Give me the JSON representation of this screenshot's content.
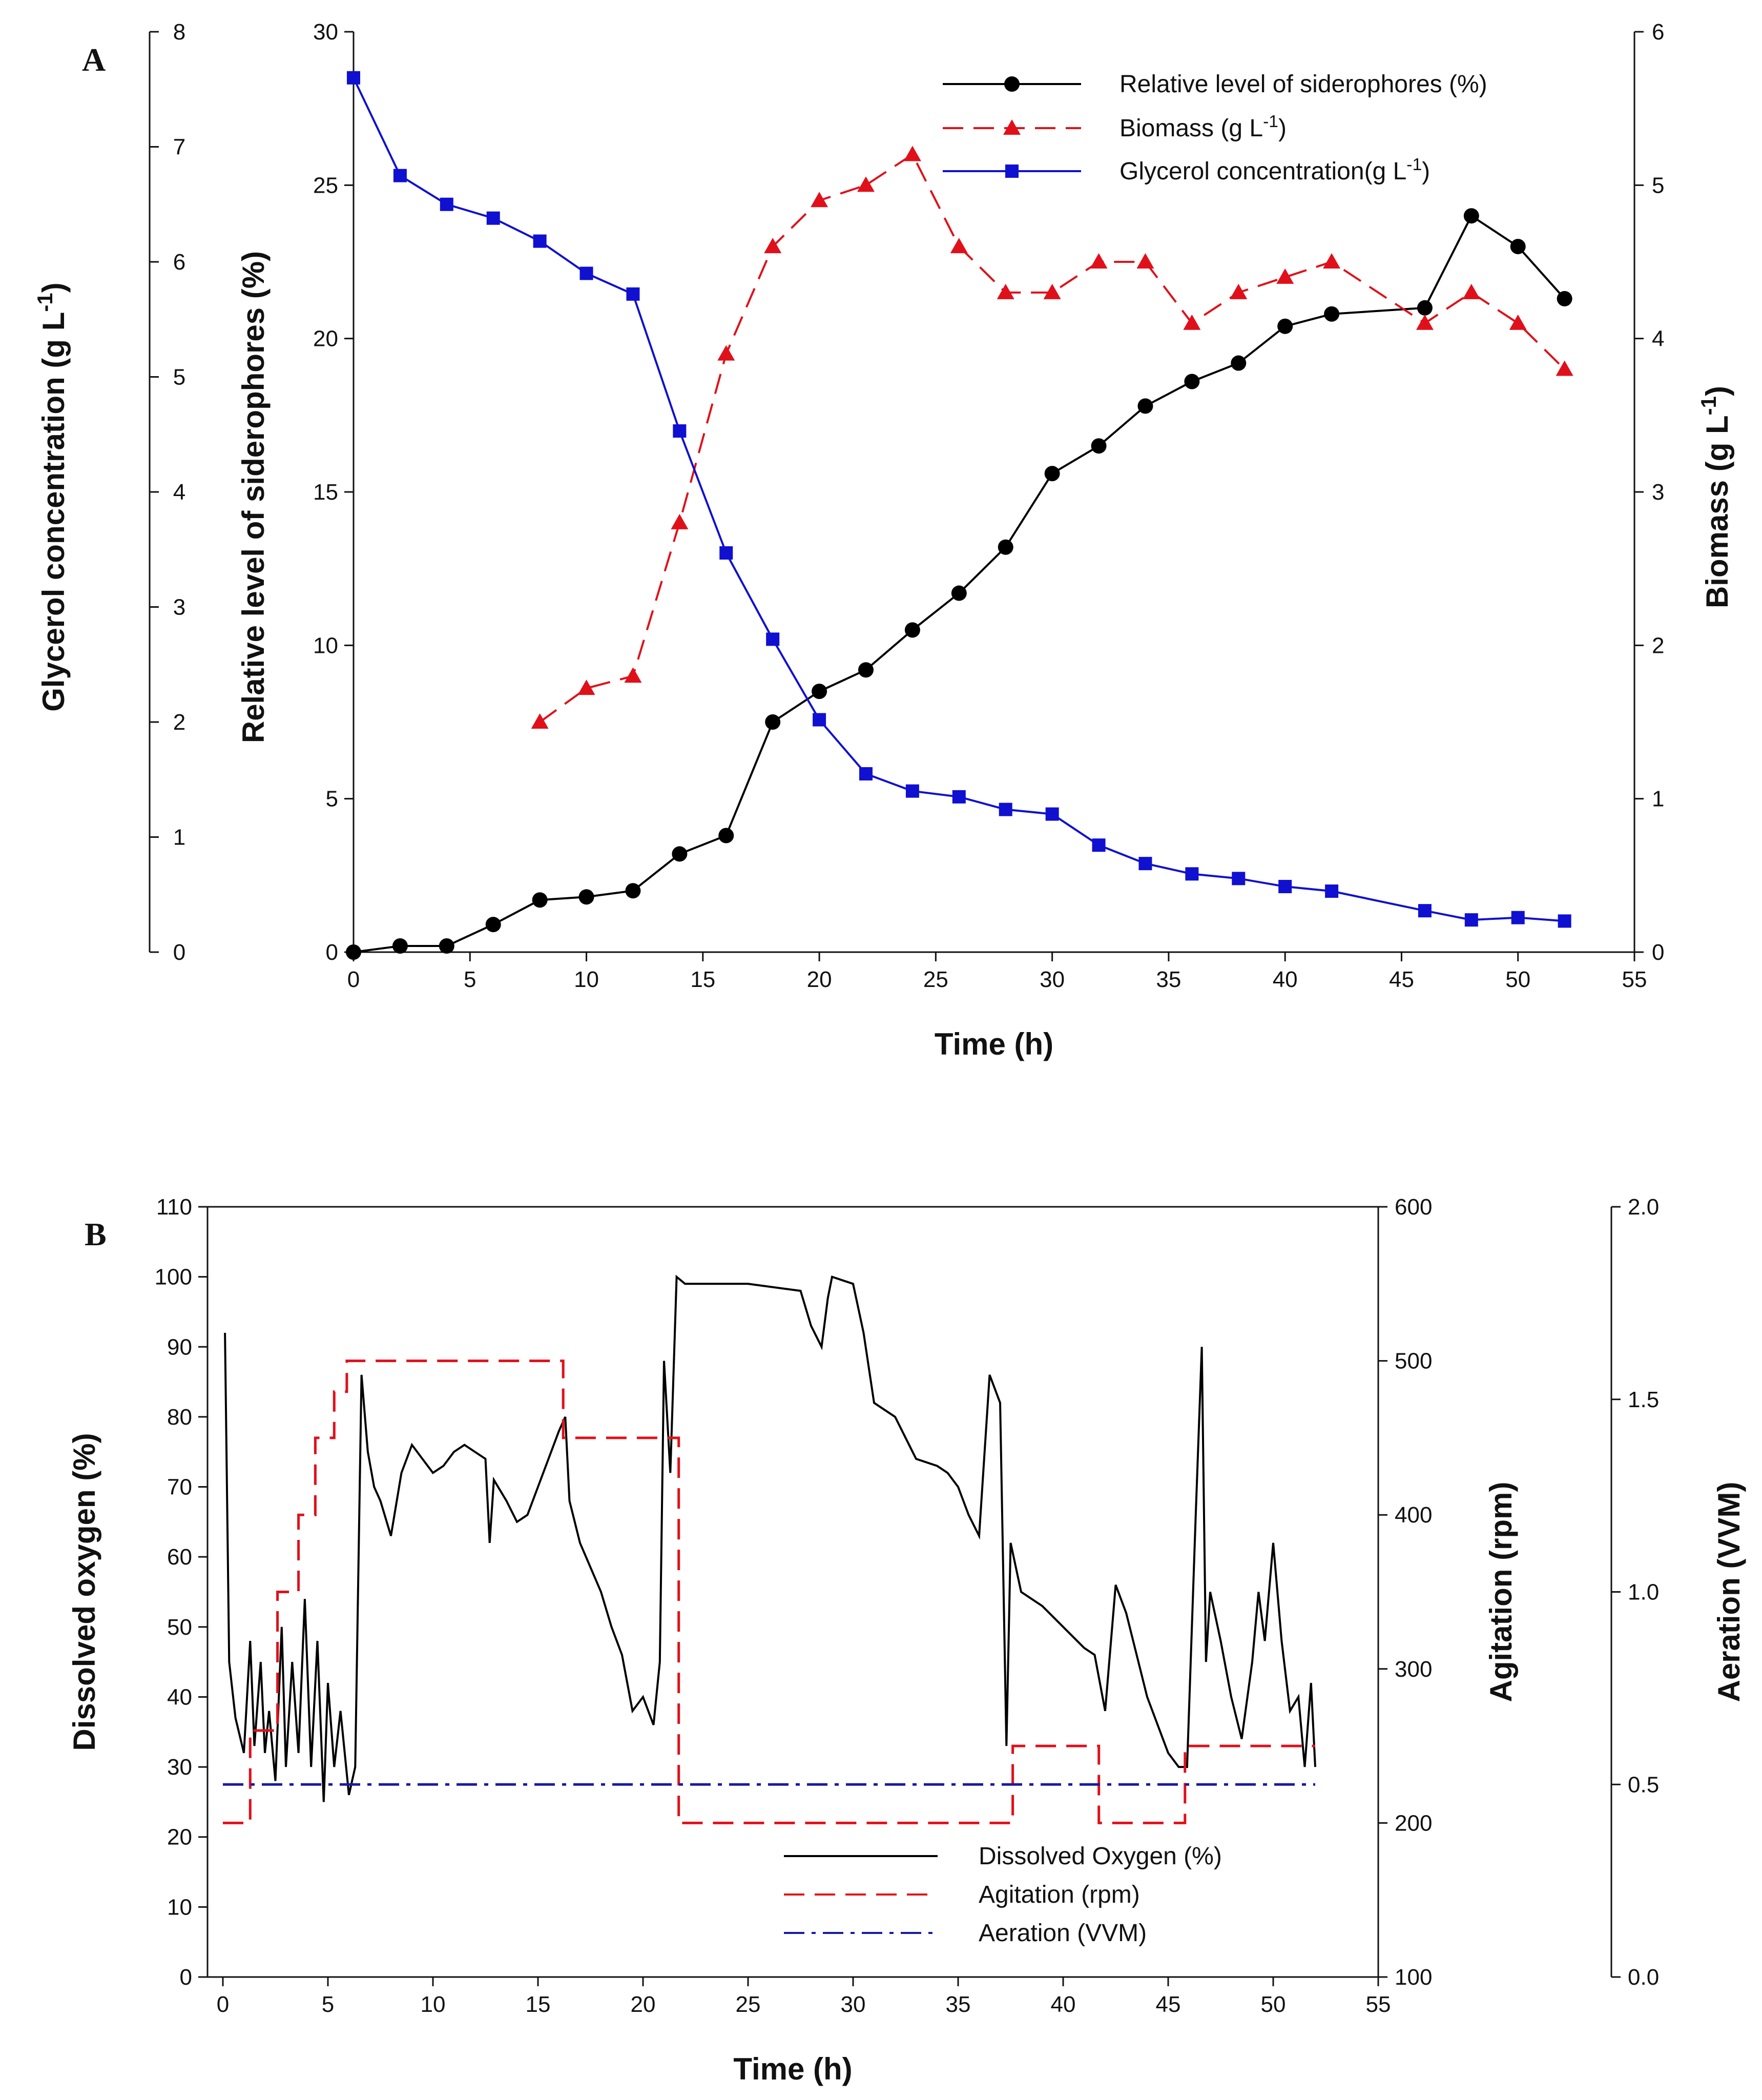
{
  "chart_data": [
    {
      "panel": "A",
      "type": "line",
      "xlabel": "Time (h)",
      "xlim": [
        0,
        55
      ],
      "xticks": [
        0,
        5,
        10,
        15,
        20,
        25,
        30,
        35,
        40,
        45,
        50,
        55
      ],
      "axes": {
        "left_outer": {
          "label": "Glycerol concentration (g L⁻¹)",
          "lim": [
            0,
            8
          ],
          "ticks": [
            0,
            1,
            2,
            3,
            4,
            5,
            6,
            7,
            8
          ]
        },
        "left_inner": {
          "label": "Relative level of siderophores (%)",
          "lim": [
            0,
            30
          ],
          "ticks": [
            0,
            5,
            10,
            15,
            20,
            25,
            30
          ]
        },
        "right": {
          "label": "Biomass (g L⁻¹)",
          "lim": [
            0,
            6
          ],
          "ticks": [
            0,
            1,
            2,
            3,
            4,
            5,
            6
          ]
        }
      },
      "legend_position": "top-right",
      "series": [
        {
          "name": "Relative level of siderophores (%)",
          "axis": "left_inner",
          "marker": "diamond",
          "line": "solid",
          "color": "#000000",
          "x": [
            0,
            2,
            4,
            6,
            8,
            10,
            12,
            14,
            16,
            18,
            20,
            22,
            24,
            26,
            28,
            30,
            32,
            34,
            36,
            38,
            40,
            42,
            46,
            48,
            50,
            52
          ],
          "values": [
            0,
            0.2,
            0.2,
            0.9,
            1.7,
            1.8,
            2.0,
            3.2,
            3.8,
            7.5,
            8.5,
            9.2,
            10.5,
            11.7,
            13.2,
            15.6,
            16.5,
            17.8,
            18.6,
            19.2,
            20.4,
            20.8,
            21.0,
            24.0,
            23.0,
            21.3
          ]
        },
        {
          "name": "Biomass (g L⁻¹)",
          "axis": "right",
          "marker": "triangle",
          "line": "dashed",
          "color": "#e0101a",
          "x": [
            8,
            10,
            12,
            14,
            16,
            18,
            20,
            22,
            24,
            26,
            28,
            30,
            32,
            34,
            36,
            38,
            40,
            42,
            46,
            48,
            50,
            52
          ],
          "values": [
            1.5,
            1.72,
            1.8,
            2.8,
            3.9,
            4.6,
            4.9,
            5.0,
            5.2,
            4.6,
            4.3,
            4.3,
            4.5,
            4.5,
            4.1,
            4.3,
            4.4,
            4.5,
            4.1,
            4.3,
            4.1,
            3.8
          ]
        },
        {
          "name": "Glycerol concentration(g L⁻¹)",
          "axis": "left_outer",
          "marker": "square",
          "line": "solid",
          "color": "#1010d0",
          "x": [
            0,
            2,
            4,
            6,
            8,
            10,
            12,
            14,
            16,
            18,
            20,
            22,
            24,
            26,
            28,
            30,
            32,
            34,
            36,
            38,
            40,
            42,
            46,
            48,
            50,
            52
          ],
          "values": [
            7.6,
            6.75,
            6.5,
            6.38,
            6.18,
            5.9,
            5.72,
            4.53,
            3.47,
            2.72,
            2.02,
            1.55,
            1.4,
            1.35,
            1.24,
            1.2,
            0.93,
            0.77,
            0.68,
            0.64,
            0.57,
            0.53,
            0.36,
            0.28,
            0.3,
            0.27
          ]
        }
      ]
    },
    {
      "panel": "B",
      "type": "line",
      "xlabel": "Time (h)",
      "xlim": [
        0,
        55
      ],
      "xticks": [
        0,
        5,
        10,
        15,
        20,
        25,
        30,
        35,
        40,
        45,
        50,
        55
      ],
      "axes": {
        "left": {
          "label": "Dissolved oxygen (%)",
          "lim": [
            0,
            110
          ],
          "ticks": [
            0,
            10,
            20,
            30,
            40,
            50,
            60,
            70,
            80,
            90,
            100,
            110
          ]
        },
        "right_inner": {
          "label": "Agitation (rpm)",
          "lim": [
            100,
            600
          ],
          "ticks": [
            100,
            200,
            300,
            400,
            500,
            600
          ]
        },
        "right_outer": {
          "label": "Aeration (VVM)",
          "lim": [
            0,
            2.0
          ],
          "ticks": [
            "0.0",
            "0.5",
            "1.0",
            "1.5",
            "2.0"
          ]
        }
      },
      "legend_position": "bottom-right",
      "series": [
        {
          "name": "Dissolved Oxygen (%)",
          "axis": "left",
          "line": "solid",
          "color": "#000000",
          "x": [
            0.1,
            0.3,
            0.6,
            1.0,
            1.3,
            1.5,
            1.8,
            2.0,
            2.2,
            2.5,
            2.8,
            3.0,
            3.3,
            3.6,
            3.9,
            4.2,
            4.5,
            4.8,
            5.0,
            5.3,
            5.6,
            6.0,
            6.3,
            6.6,
            6.9,
            7.2,
            7.5,
            8.0,
            8.5,
            9.0,
            9.5,
            10.0,
            10.5,
            11.0,
            11.5,
            12.0,
            12.5,
            12.7,
            12.9,
            13.5,
            14.0,
            14.5,
            15.0,
            15.5,
            16.0,
            16.3,
            16.5,
            17.0,
            18.0,
            18.5,
            19.0,
            19.5,
            20.0,
            20.5,
            20.8,
            21.0,
            21.3,
            21.6,
            22.0,
            22.5,
            25.0,
            27.5,
            28.0,
            28.5,
            28.8,
            29.0,
            30.0,
            30.5,
            31.0,
            32.0,
            33.0,
            34.0,
            34.5,
            35.0,
            35.5,
            36.0,
            36.5,
            37.0,
            37.3,
            37.5,
            38.0,
            39.0,
            40.0,
            41.0,
            41.5,
            42.0,
            42.5,
            43.0,
            44.0,
            45.0,
            45.5,
            45.9,
            46.3,
            46.6,
            46.8,
            47.0,
            47.5,
            48.0,
            48.5,
            49.0,
            49.3,
            49.6,
            50.0,
            50.4,
            50.8,
            51.2,
            51.5,
            51.8,
            52.0
          ],
          "values": [
            92,
            45,
            37,
            32,
            48,
            33,
            45,
            32,
            38,
            28,
            50,
            30,
            45,
            32,
            54,
            30,
            48,
            25,
            42,
            30,
            38,
            26,
            30,
            86,
            75,
            70,
            68,
            63,
            72,
            76,
            74,
            72,
            73,
            75,
            76,
            75,
            74,
            62,
            71,
            68,
            65,
            66,
            70,
            74,
            78,
            80,
            68,
            62,
            55,
            50,
            46,
            38,
            40,
            36,
            45,
            88,
            72,
            100,
            99,
            99,
            99,
            98,
            93,
            90,
            97,
            100,
            99,
            92,
            82,
            80,
            74,
            73,
            72,
            70,
            66,
            63,
            86,
            82,
            33,
            62,
            55,
            53,
            50,
            47,
            46,
            38,
            56,
            52,
            40,
            32,
            30,
            30,
            65,
            90,
            45,
            55,
            48,
            40,
            34,
            45,
            55,
            48,
            62,
            48,
            38,
            40,
            30,
            42,
            30
          ],
          "min_value": 25,
          "max_value": 100
        },
        {
          "name": "Agitation (rpm)",
          "axis": "right_inner",
          "line": "dashed",
          "color": "#e0101a",
          "step": true,
          "x": [
            0,
            1.3,
            1.3,
            2.6,
            2.6,
            3.6,
            3.6,
            4.4,
            4.4,
            5.3,
            5.3,
            5.9,
            5.9,
            16.2,
            16.2,
            21.7,
            21.7,
            37.6,
            37.6,
            41.7,
            41.7,
            45.8,
            45.8,
            52.0
          ],
          "values": [
            200,
            200,
            260,
            260,
            350,
            350,
            400,
            400,
            450,
            450,
            480,
            480,
            500,
            500,
            450,
            450,
            200,
            200,
            250,
            250,
            200,
            200,
            250,
            250
          ]
        },
        {
          "name": "Aeration (VVM)",
          "axis": "right_outer",
          "line": "dashdot",
          "color": "#1a1aa0",
          "x": [
            0,
            52
          ],
          "values": [
            0.5,
            0.5
          ]
        }
      ]
    }
  ]
}
